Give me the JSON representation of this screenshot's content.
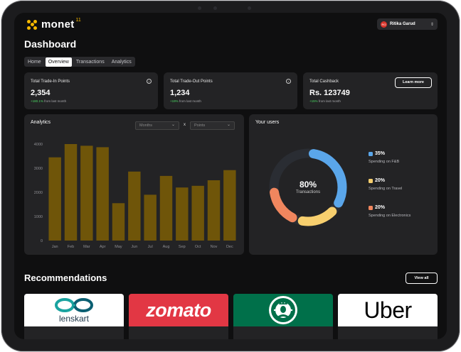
{
  "brand": {
    "name": "monet",
    "superscript": "11",
    "accent": "#f5b800"
  },
  "user": {
    "initials": "RG",
    "name": "Ritika Garud"
  },
  "page_title": "Dashboard",
  "tabs": [
    {
      "label": "Home",
      "active": false
    },
    {
      "label": "Overview",
      "active": true
    },
    {
      "label": "Transactions",
      "active": false
    },
    {
      "label": "Analytics",
      "active": false
    }
  ],
  "stats": [
    {
      "label": "Total Trade-In Points",
      "value": "2,354",
      "change_highlight": "+180.1%",
      "change_rest": " from last month"
    },
    {
      "label": "Total Trade-Out Points",
      "value": "1,234",
      "change_highlight": "+19%",
      "change_rest": " from last month"
    },
    {
      "label": "Total Cashback",
      "value": "Rs. 123749",
      "change_highlight": "+15%",
      "change_rest": " from last month",
      "action": "Learn more"
    }
  ],
  "analytics": {
    "title": "Analytics",
    "dropdown1_value": "Months",
    "separator": "x",
    "dropdown2_value": "Points"
  },
  "chart_data": {
    "type": "bar",
    "title": "Analytics",
    "categories": [
      "Jan",
      "Feb",
      "Mar",
      "Apr",
      "May",
      "Jun",
      "Jul",
      "Aug",
      "Sep",
      "Oct",
      "Nov",
      "Dec"
    ],
    "values": [
      3450,
      4000,
      3930,
      3870,
      1550,
      2860,
      1900,
      2680,
      2200,
      2270,
      2500,
      2920
    ],
    "ylim": [
      0,
      4000
    ],
    "yticks": [
      0,
      1000,
      2000,
      3000,
      4000
    ],
    "grid": false,
    "bar_color": "#6f5509"
  },
  "users": {
    "title": "Your users",
    "center_value": "80%",
    "center_label": "Transactions",
    "segments": [
      {
        "pct": "35%",
        "label": "Spending on F&B",
        "value": 35,
        "color": "#5aa6ea"
      },
      {
        "pct": "20%",
        "label": "Spending on Travel",
        "value": 20,
        "color": "#f7cf6e"
      },
      {
        "pct": "20%",
        "label": "Spending on Electronics",
        "value": 20,
        "color": "#f0865e"
      }
    ],
    "remainder_color": "#2a2d33"
  },
  "recommendations": {
    "title": "Recommendations",
    "view_all": "View all",
    "items": [
      {
        "brand": "lenskart",
        "bg": "#ffffff"
      },
      {
        "brand": "zomato",
        "bg": "#e23744"
      },
      {
        "brand": "starbucks",
        "bg": "#00704a"
      },
      {
        "brand": "Uber",
        "bg": "#ffffff"
      }
    ]
  }
}
